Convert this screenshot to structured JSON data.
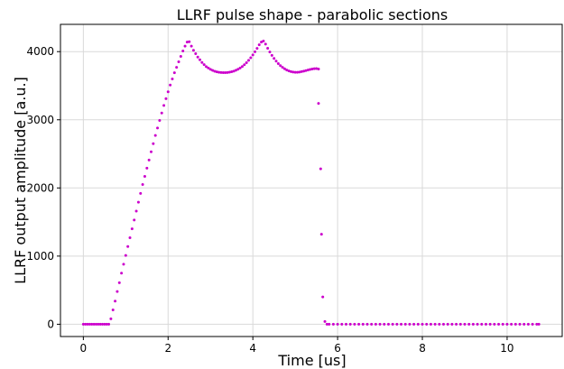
{
  "chart_data": {
    "type": "scatter",
    "title": "LLRF pulse shape - parabolic sections",
    "xlabel": "Time [us]",
    "ylabel": "LLRF output amplitude [a.u.]",
    "xlim": [
      -0.54,
      11.3
    ],
    "ylim": [
      -180,
      4400
    ],
    "xticks": [
      0,
      2,
      4,
      6,
      8,
      10
    ],
    "yticks": [
      0,
      1000,
      2000,
      3000,
      4000
    ],
    "grid": true,
    "marker_color": "#cc00cc",
    "points": [
      [
        0.0,
        0
      ],
      [
        0.05,
        0
      ],
      [
        0.1,
        0
      ],
      [
        0.15,
        0
      ],
      [
        0.2,
        0
      ],
      [
        0.25,
        0
      ],
      [
        0.3,
        0
      ],
      [
        0.35,
        0
      ],
      [
        0.4,
        0
      ],
      [
        0.45,
        0
      ],
      [
        0.5,
        0
      ],
      [
        0.55,
        0
      ],
      [
        0.6,
        0
      ],
      [
        0.65,
        80
      ],
      [
        0.7,
        210
      ],
      [
        0.75,
        340
      ],
      [
        0.8,
        480
      ],
      [
        0.85,
        610
      ],
      [
        0.9,
        750
      ],
      [
        0.95,
        880
      ],
      [
        1.0,
        1010
      ],
      [
        1.05,
        1140
      ],
      [
        1.1,
        1270
      ],
      [
        1.15,
        1400
      ],
      [
        1.2,
        1530
      ],
      [
        1.25,
        1660
      ],
      [
        1.3,
        1790
      ],
      [
        1.35,
        1920
      ],
      [
        1.4,
        2050
      ],
      [
        1.45,
        2170
      ],
      [
        1.5,
        2290
      ],
      [
        1.55,
        2410
      ],
      [
        1.6,
        2530
      ],
      [
        1.65,
        2650
      ],
      [
        1.7,
        2770
      ],
      [
        1.75,
        2880
      ],
      [
        1.8,
        2990
      ],
      [
        1.85,
        3100
      ],
      [
        1.9,
        3210
      ],
      [
        1.95,
        3310
      ],
      [
        2.0,
        3410
      ],
      [
        2.05,
        3510
      ],
      [
        2.1,
        3600
      ],
      [
        2.15,
        3690
      ],
      [
        2.2,
        3770
      ],
      [
        2.25,
        3850
      ],
      [
        2.3,
        3930
      ],
      [
        2.35,
        4010
      ],
      [
        2.4,
        4080
      ],
      [
        2.45,
        4140
      ],
      [
        2.5,
        4145
      ],
      [
        2.55,
        4080
      ],
      [
        2.6,
        4020
      ],
      [
        2.65,
        3970
      ],
      [
        2.7,
        3920
      ],
      [
        2.75,
        3880
      ],
      [
        2.8,
        3840
      ],
      [
        2.85,
        3810
      ],
      [
        2.9,
        3780
      ],
      [
        2.95,
        3760
      ],
      [
        3.0,
        3740
      ],
      [
        3.05,
        3725
      ],
      [
        3.1,
        3712
      ],
      [
        3.15,
        3703
      ],
      [
        3.2,
        3697
      ],
      [
        3.25,
        3693
      ],
      [
        3.3,
        3692
      ],
      [
        3.35,
        3692
      ],
      [
        3.4,
        3694
      ],
      [
        3.45,
        3698
      ],
      [
        3.5,
        3705
      ],
      [
        3.55,
        3714
      ],
      [
        3.6,
        3726
      ],
      [
        3.65,
        3741
      ],
      [
        3.7,
        3760
      ],
      [
        3.75,
        3782
      ],
      [
        3.8,
        3808
      ],
      [
        3.85,
        3838
      ],
      [
        3.9,
        3872
      ],
      [
        3.95,
        3910
      ],
      [
        4.0,
        3952
      ],
      [
        4.05,
        3998
      ],
      [
        4.1,
        4048
      ],
      [
        4.15,
        4100
      ],
      [
        4.2,
        4140
      ],
      [
        4.25,
        4155
      ],
      [
        4.3,
        4110
      ],
      [
        4.35,
        4050
      ],
      [
        4.4,
        3995
      ],
      [
        4.45,
        3945
      ],
      [
        4.5,
        3900
      ],
      [
        4.55,
        3860
      ],
      [
        4.6,
        3825
      ],
      [
        4.65,
        3795
      ],
      [
        4.7,
        3770
      ],
      [
        4.75,
        3748
      ],
      [
        4.8,
        3730
      ],
      [
        4.85,
        3716
      ],
      [
        4.9,
        3706
      ],
      [
        4.95,
        3700
      ],
      [
        5.0,
        3697
      ],
      [
        5.05,
        3697
      ],
      [
        5.1,
        3700
      ],
      [
        5.15,
        3706
      ],
      [
        5.2,
        3714
      ],
      [
        5.25,
        3722
      ],
      [
        5.3,
        3730
      ],
      [
        5.35,
        3738
      ],
      [
        5.4,
        3745
      ],
      [
        5.45,
        3750
      ],
      [
        5.5,
        3752
      ],
      [
        5.55,
        3745
      ],
      [
        5.55,
        3240
      ],
      [
        5.6,
        2280
      ],
      [
        5.62,
        1320
      ],
      [
        5.65,
        400
      ],
      [
        5.7,
        40
      ],
      [
        5.75,
        0
      ],
      [
        5.8,
        0
      ],
      [
        5.9,
        0
      ],
      [
        6.0,
        0
      ],
      [
        6.1,
        0
      ],
      [
        6.2,
        0
      ],
      [
        6.3,
        0
      ],
      [
        6.4,
        0
      ],
      [
        6.5,
        0
      ],
      [
        6.6,
        0
      ],
      [
        6.7,
        0
      ],
      [
        6.8,
        0
      ],
      [
        6.9,
        0
      ],
      [
        7.0,
        0
      ],
      [
        7.1,
        0
      ],
      [
        7.2,
        0
      ],
      [
        7.3,
        0
      ],
      [
        7.4,
        0
      ],
      [
        7.5,
        0
      ],
      [
        7.6,
        0
      ],
      [
        7.7,
        0
      ],
      [
        7.8,
        0
      ],
      [
        7.9,
        0
      ],
      [
        8.0,
        0
      ],
      [
        8.1,
        0
      ],
      [
        8.2,
        0
      ],
      [
        8.3,
        0
      ],
      [
        8.4,
        0
      ],
      [
        8.5,
        0
      ],
      [
        8.6,
        0
      ],
      [
        8.7,
        0
      ],
      [
        8.8,
        0
      ],
      [
        8.9,
        0
      ],
      [
        9.0,
        0
      ],
      [
        9.1,
        0
      ],
      [
        9.2,
        0
      ],
      [
        9.3,
        0
      ],
      [
        9.4,
        0
      ],
      [
        9.5,
        0
      ],
      [
        9.6,
        0
      ],
      [
        9.7,
        0
      ],
      [
        9.8,
        0
      ],
      [
        9.9,
        0
      ],
      [
        10.0,
        0
      ],
      [
        10.1,
        0
      ],
      [
        10.2,
        0
      ],
      [
        10.3,
        0
      ],
      [
        10.4,
        0
      ],
      [
        10.5,
        0
      ],
      [
        10.6,
        0
      ],
      [
        10.7,
        0
      ],
      [
        10.75,
        0
      ]
    ]
  }
}
